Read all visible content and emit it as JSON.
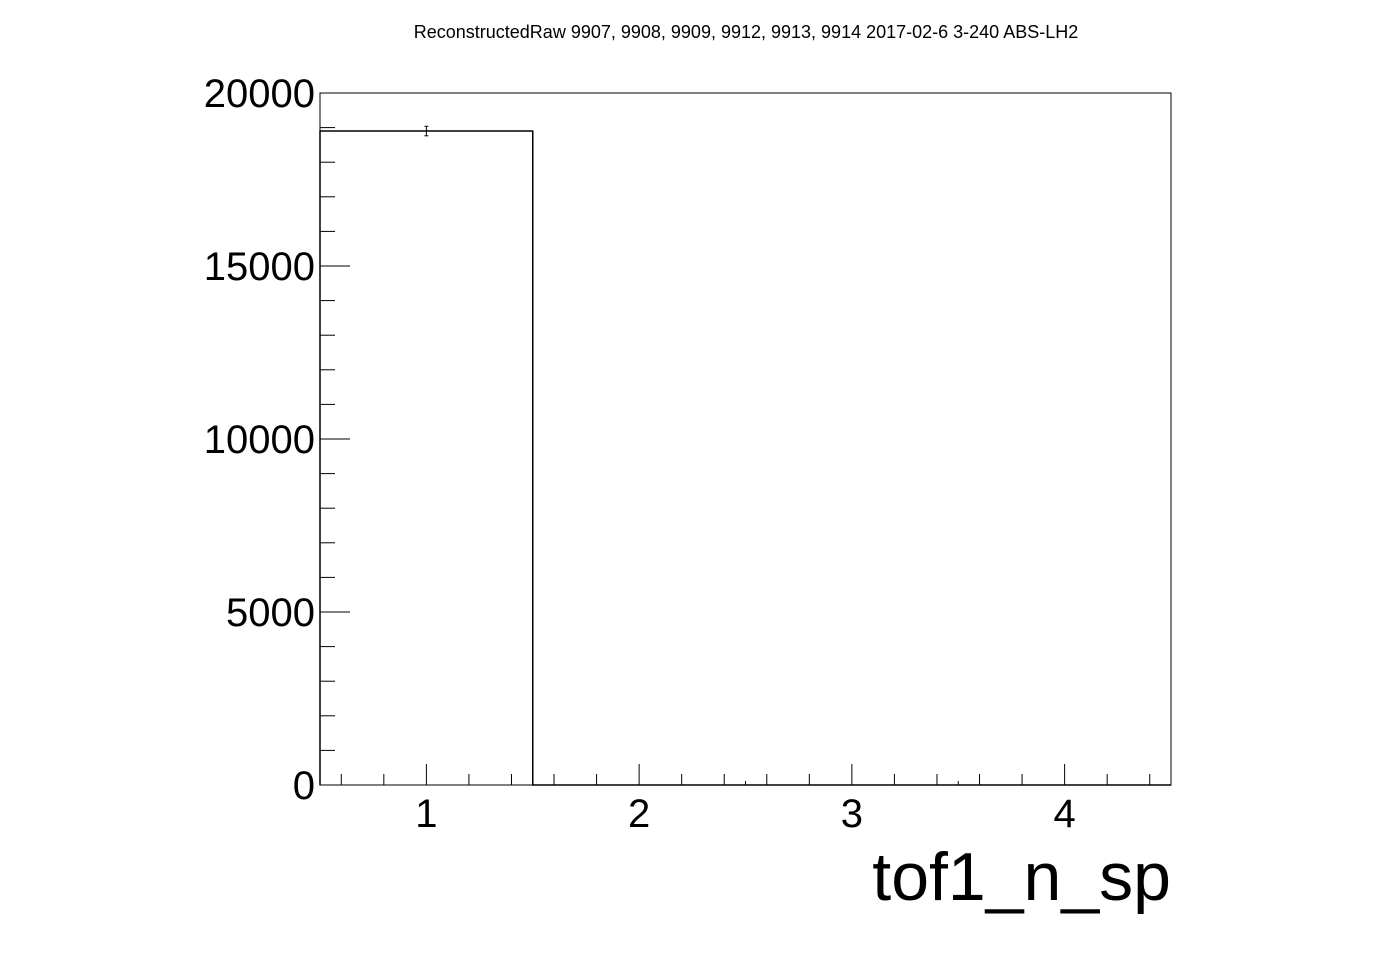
{
  "chart_data": {
    "type": "bar",
    "title": "ReconstructedRaw 9907, 9908, 9909, 9912, 9913, 9914 2017-02-6 3-240 ABS-LH2",
    "xlabel": "tof1_n_sp",
    "ylabel": "",
    "xlim": [
      0.5,
      4.5
    ],
    "ylim": [
      0,
      20000
    ],
    "x_ticks": [
      "1",
      "2",
      "3",
      "4"
    ],
    "y_ticks": [
      "0",
      "5000",
      "10000",
      "15000",
      "20000"
    ],
    "bins": [
      {
        "x_low": 0.5,
        "x_high": 1.5,
        "value": 18900,
        "error": 137
      },
      {
        "x_low": 1.5,
        "x_high": 2.5,
        "value": 0,
        "error": 0
      },
      {
        "x_low": 2.5,
        "x_high": 3.5,
        "value": 0,
        "error": 0
      },
      {
        "x_low": 3.5,
        "x_high": 4.5,
        "value": 0,
        "error": 0
      }
    ],
    "grid": false,
    "legend": "none",
    "line_color": "#000000"
  }
}
